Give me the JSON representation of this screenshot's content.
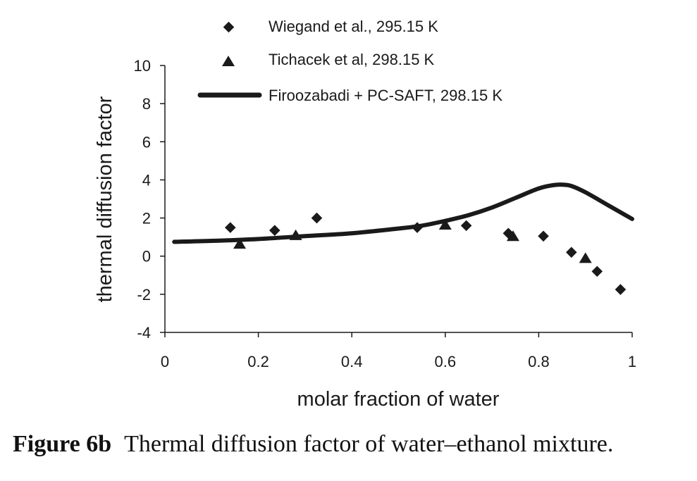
{
  "chart_data": {
    "type": "scatter",
    "xlabel": "molar fraction of water",
    "ylabel": "thermal diffusion factor",
    "xlim": [
      0,
      1
    ],
    "ylim": [
      -4,
      10
    ],
    "x_ticks": [
      0,
      0.2,
      0.4,
      0.6,
      0.8,
      1
    ],
    "x_tick_labels": [
      "0",
      "0.2",
      "0.4",
      "0.6",
      "0.8",
      "1"
    ],
    "y_ticks": [
      -4,
      -2,
      0,
      2,
      4,
      6,
      8,
      10
    ],
    "y_tick_labels": [
      "-4",
      "-2",
      "0",
      "2",
      "4",
      "6",
      "8",
      "10"
    ],
    "grid": false,
    "legend_position": "top",
    "series": [
      {
        "name": "Wiegand et al., 295.15 K",
        "marker": "diamond",
        "color": "#1a1a1a",
        "x": [
          0.14,
          0.235,
          0.325,
          0.54,
          0.645,
          0.735,
          0.81,
          0.87,
          0.925,
          0.975
        ],
        "y": [
          1.5,
          1.35,
          2.0,
          1.5,
          1.6,
          1.2,
          1.05,
          0.2,
          -0.8,
          -1.75
        ]
      },
      {
        "name": "Tichacek et al, 298.15 K",
        "marker": "triangle",
        "color": "#1a1a1a",
        "x": [
          0.16,
          0.28,
          0.6,
          0.745,
          0.9
        ],
        "y": [
          0.65,
          1.1,
          1.65,
          1.05,
          -0.1
        ]
      },
      {
        "name": "Firoozabadi + PC-SAFT, 298.15 K",
        "marker": "line",
        "color": "#1a1a1a",
        "x": [
          0.02,
          0.1,
          0.2,
          0.3,
          0.4,
          0.5,
          0.55,
          0.6,
          0.65,
          0.7,
          0.75,
          0.8,
          0.83,
          0.85,
          0.87,
          0.9,
          0.95,
          1.0
        ],
        "y": [
          0.75,
          0.8,
          0.9,
          1.05,
          1.2,
          1.45,
          1.6,
          1.85,
          2.15,
          2.55,
          3.05,
          3.55,
          3.72,
          3.75,
          3.68,
          3.35,
          2.65,
          1.95
        ]
      }
    ]
  },
  "caption": {
    "label": "Figure 6b",
    "text": "Thermal diffusion factor of water–ethanol mixture."
  }
}
